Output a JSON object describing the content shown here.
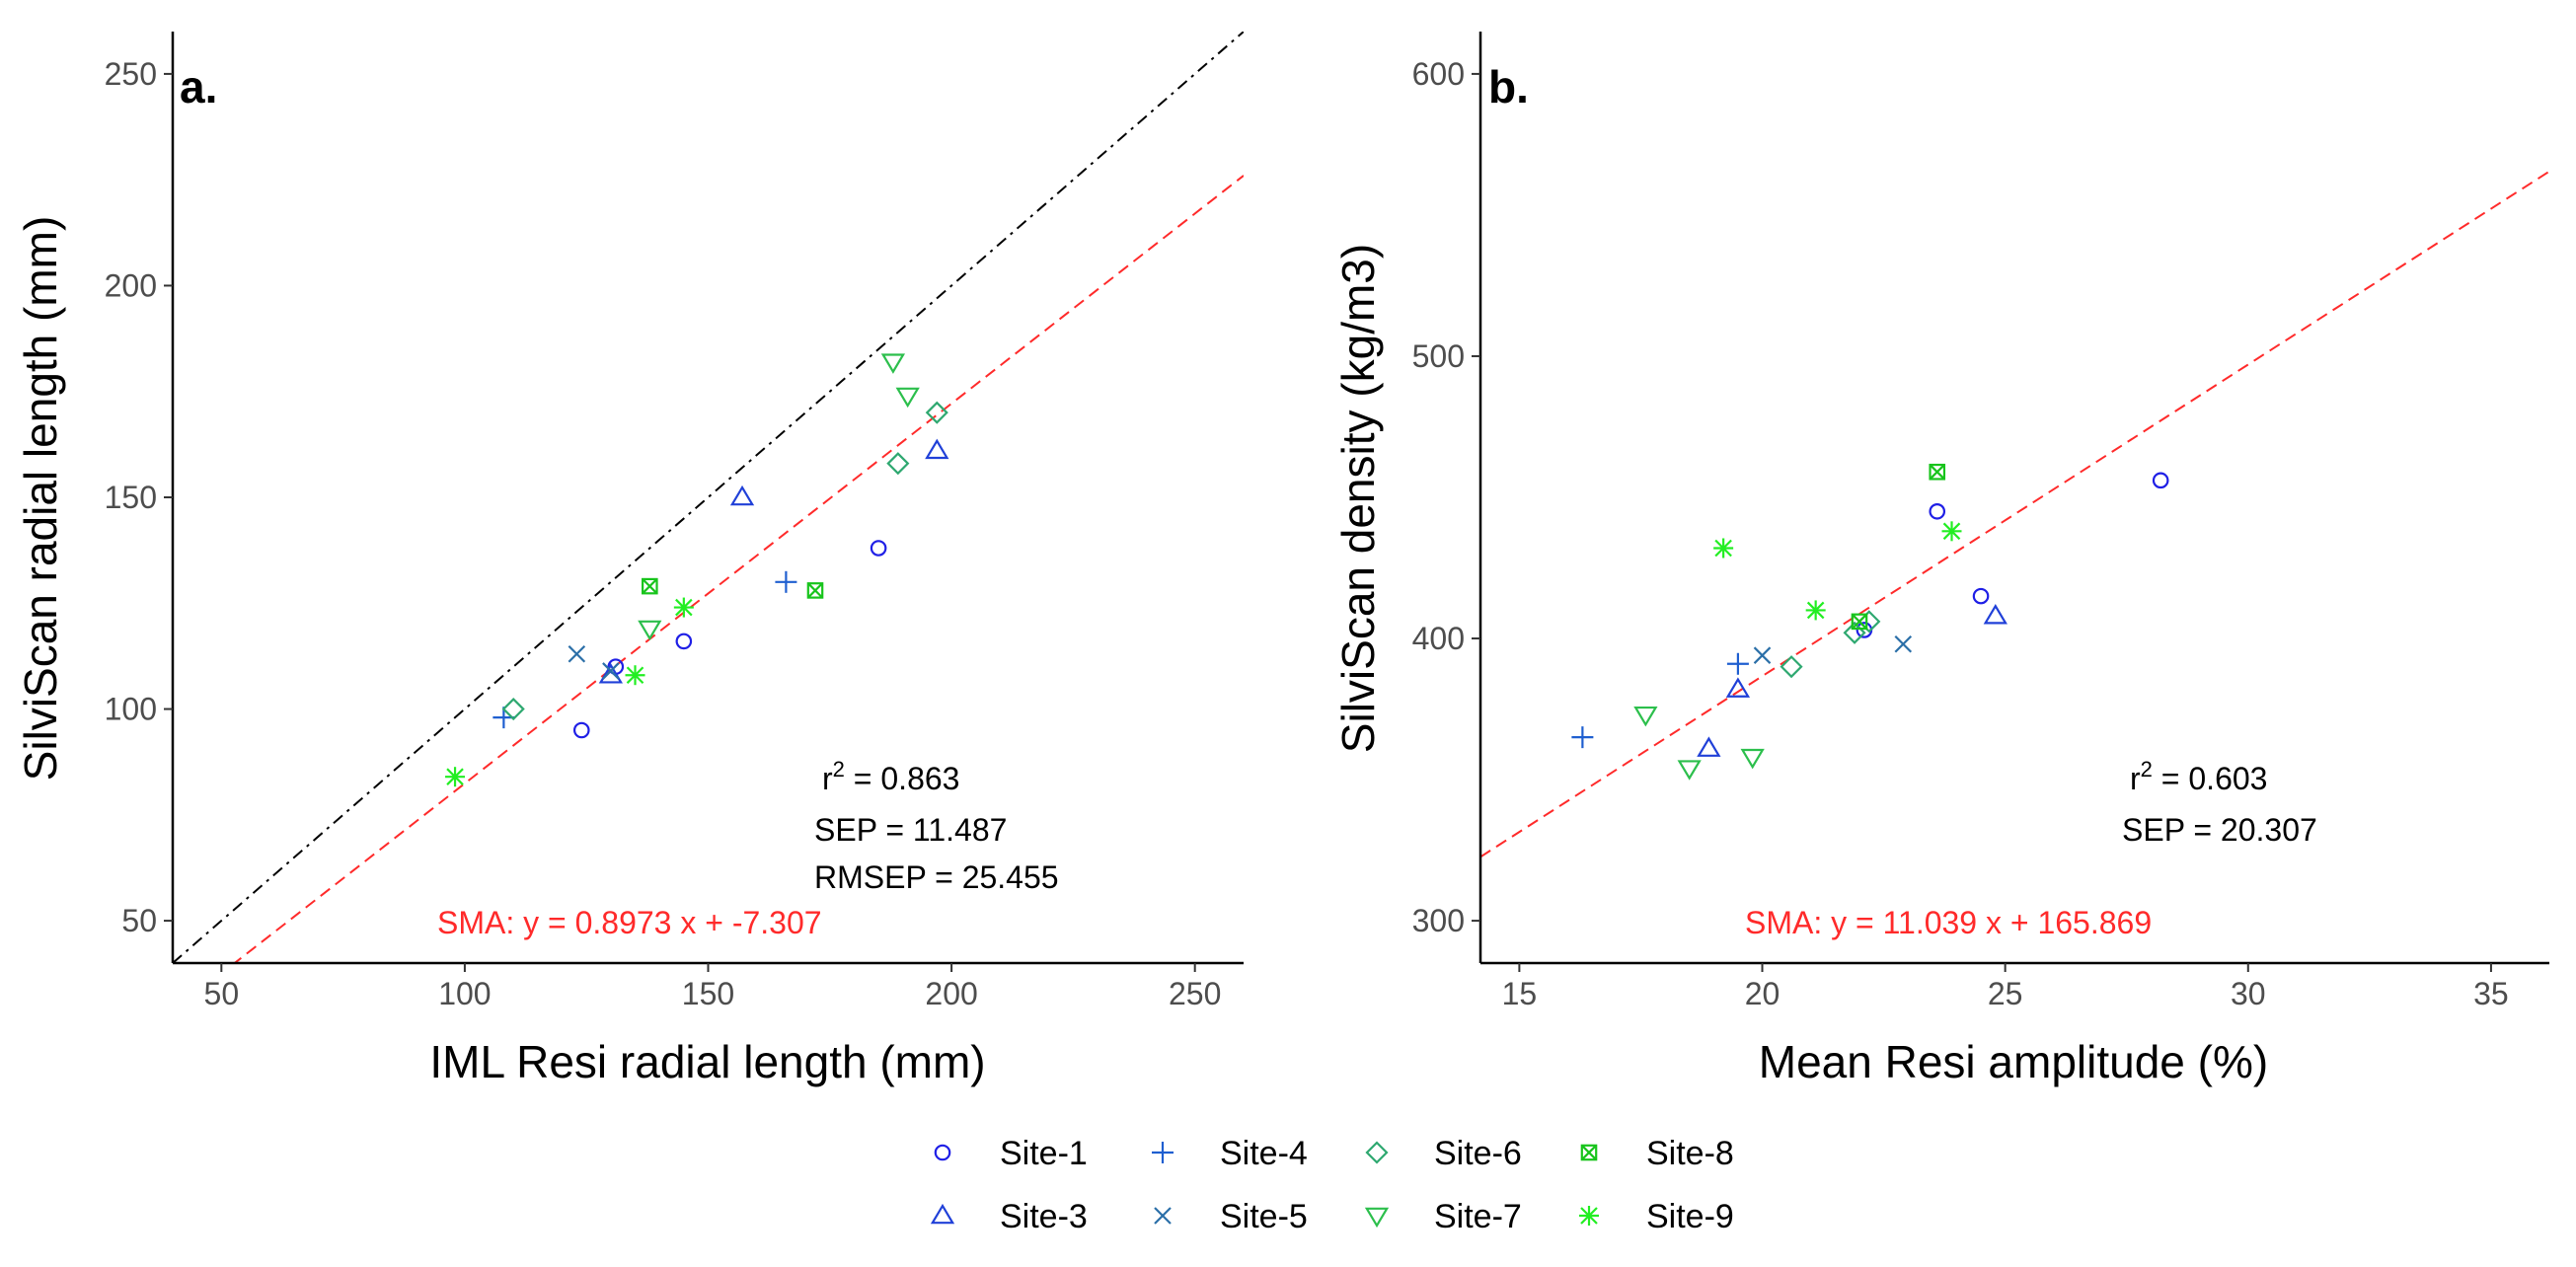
{
  "site_colors": {
    "Site-1": "#1f1fe6",
    "Site-3": "#2040d8",
    "Site-4": "#1f5fd0",
    "Site-5": "#2b6fa8",
    "Site-6": "#2ea870",
    "Site-7": "#2cbf4c",
    "Site-8": "#18c41c",
    "Site-9": "#22ee22"
  },
  "site_shapes": {
    "Site-1": "circle",
    "Site-3": "triangle-up",
    "Site-4": "plus",
    "Site-5": "cross",
    "Site-6": "diamond",
    "Site-7": "triangle-down",
    "Site-8": "square-cross",
    "Site-9": "asterisk"
  },
  "legend": {
    "items": [
      "Site-1",
      "Site-4",
      "Site-6",
      "Site-8",
      "Site-3",
      "Site-5",
      "Site-7",
      "Site-9"
    ]
  },
  "chart_data": [
    {
      "type": "scatter",
      "panel_label": "a.",
      "xlabel": "IML Resi radial length (mm)",
      "ylabel": "SilviScan radial length (mm)",
      "xlim": [
        40,
        260
      ],
      "ylim": [
        40,
        260
      ],
      "xticks": [
        50,
        100,
        150,
        200,
        250
      ],
      "yticks": [
        50,
        100,
        150,
        200,
        250
      ],
      "grid": false,
      "reference_line": {
        "type": "1:1",
        "style": "dotdash",
        "color": "#000000"
      },
      "sma_line": {
        "slope": 0.8973,
        "intercept": -7.307,
        "color": "#ff2a2a"
      },
      "stats": {
        "r2_prefix": "r",
        "r2_sup": "2",
        "r2_value": " = 0.863",
        "sep": "SEP =  11.487",
        "rmsep": "RMSEP =  25.455"
      },
      "sma_label": "SMA: y =  0.8973 x + -7.307",
      "points": [
        {
          "site": "Site-1",
          "x": 124,
          "y": 95
        },
        {
          "site": "Site-1",
          "x": 131,
          "y": 110
        },
        {
          "site": "Site-1",
          "x": 145,
          "y": 116
        },
        {
          "site": "Site-1",
          "x": 185,
          "y": 138
        },
        {
          "site": "Site-3",
          "x": 130,
          "y": 108
        },
        {
          "site": "Site-3",
          "x": 157,
          "y": 150
        },
        {
          "site": "Site-3",
          "x": 197,
          "y": 161
        },
        {
          "site": "Site-4",
          "x": 108,
          "y": 98
        },
        {
          "site": "Site-4",
          "x": 166,
          "y": 130
        },
        {
          "site": "Site-5",
          "x": 123,
          "y": 113
        },
        {
          "site": "Site-5",
          "x": 130,
          "y": 109
        },
        {
          "site": "Site-6",
          "x": 110,
          "y": 100
        },
        {
          "site": "Site-6",
          "x": 189,
          "y": 158
        },
        {
          "site": "Site-6",
          "x": 197,
          "y": 170
        },
        {
          "site": "Site-7",
          "x": 138,
          "y": 119
        },
        {
          "site": "Site-7",
          "x": 188,
          "y": 182
        },
        {
          "site": "Site-7",
          "x": 191,
          "y": 174
        },
        {
          "site": "Site-8",
          "x": 138,
          "y": 129
        },
        {
          "site": "Site-8",
          "x": 172,
          "y": 128
        },
        {
          "site": "Site-9",
          "x": 98,
          "y": 84
        },
        {
          "site": "Site-9",
          "x": 135,
          "y": 108
        },
        {
          "site": "Site-9",
          "x": 145,
          "y": 124
        }
      ]
    },
    {
      "type": "scatter",
      "panel_label": "b.",
      "xlabel": "Mean Resi amplitude (%)",
      "ylabel": "SilviScan density (kg/m3)",
      "xlim": [
        14.2,
        36.2
      ],
      "ylim": [
        285,
        615
      ],
      "xticks": [
        15,
        20,
        25,
        30,
        35
      ],
      "yticks": [
        300,
        400,
        500,
        600
      ],
      "grid": false,
      "sma_line": {
        "slope": 11.039,
        "intercept": 165.869,
        "color": "#ff2a2a"
      },
      "stats": {
        "r2_prefix": "r",
        "r2_sup": "2",
        "r2_value": " = 0.603",
        "sep": "SEP =  20.307"
      },
      "sma_label": "SMA: y =  11.039 x + 165.869",
      "points": [
        {
          "site": "Site-1",
          "x": 22.1,
          "y": 403
        },
        {
          "site": "Site-1",
          "x": 23.6,
          "y": 445
        },
        {
          "site": "Site-1",
          "x": 24.5,
          "y": 415
        },
        {
          "site": "Site-1",
          "x": 28.2,
          "y": 456
        },
        {
          "site": "Site-3",
          "x": 18.9,
          "y": 361
        },
        {
          "site": "Site-3",
          "x": 19.5,
          "y": 382
        },
        {
          "site": "Site-3",
          "x": 24.8,
          "y": 408
        },
        {
          "site": "Site-4",
          "x": 16.3,
          "y": 365
        },
        {
          "site": "Site-4",
          "x": 19.5,
          "y": 391
        },
        {
          "site": "Site-5",
          "x": 20.0,
          "y": 394
        },
        {
          "site": "Site-5",
          "x": 22.9,
          "y": 398
        },
        {
          "site": "Site-6",
          "x": 20.6,
          "y": 390
        },
        {
          "site": "Site-6",
          "x": 21.9,
          "y": 402
        },
        {
          "site": "Site-6",
          "x": 22.2,
          "y": 406
        },
        {
          "site": "Site-7",
          "x": 17.6,
          "y": 373
        },
        {
          "site": "Site-7",
          "x": 18.5,
          "y": 354
        },
        {
          "site": "Site-7",
          "x": 19.8,
          "y": 358
        },
        {
          "site": "Site-8",
          "x": 22.0,
          "y": 406
        },
        {
          "site": "Site-8",
          "x": 23.6,
          "y": 459
        },
        {
          "site": "Site-9",
          "x": 19.2,
          "y": 432
        },
        {
          "site": "Site-9",
          "x": 21.1,
          "y": 410
        },
        {
          "site": "Site-9",
          "x": 23.9,
          "y": 438
        }
      ]
    }
  ]
}
